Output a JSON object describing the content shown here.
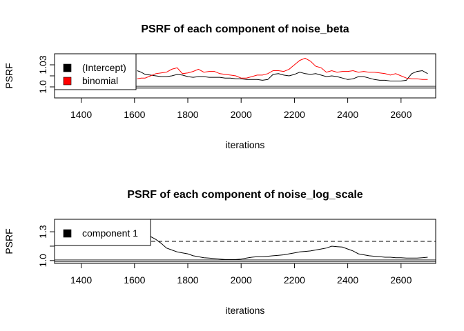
{
  "chart_data": [
    {
      "type": "line",
      "title": "PSRF of each component of noise_beta",
      "xlabel": "iterations",
      "ylabel": "PSRF",
      "xlim": [
        1300,
        2730
      ],
      "ylim": [
        0.985,
        1.045
      ],
      "x_ticks": [
        1400,
        1600,
        1800,
        2000,
        2200,
        2400,
        2600
      ],
      "y_ticks": [
        1.0,
        1.03
      ],
      "y_minor_ticks": [
        1.015
      ],
      "legend": "top-left",
      "hline": 1.0,
      "series": [
        {
          "name": "(Intercept)",
          "color": "#000000",
          "x": [
            1610,
            1625,
            1640,
            1660,
            1680,
            1700,
            1720,
            1740,
            1760,
            1780,
            1800,
            1820,
            1840,
            1860,
            1880,
            1900,
            1920,
            1940,
            1960,
            1980,
            2000,
            2020,
            2040,
            2060,
            2080,
            2100,
            2120,
            2140,
            2160,
            2180,
            2200,
            2220,
            2240,
            2260,
            2280,
            2300,
            2320,
            2340,
            2360,
            2380,
            2400,
            2420,
            2440,
            2460,
            2480,
            2500,
            2520,
            2540,
            2560,
            2580,
            2600,
            2620,
            2640,
            2660,
            2680,
            2700
          ],
          "y": [
            1.022,
            1.02,
            1.017,
            1.016,
            1.015,
            1.014,
            1.014,
            1.015,
            1.017,
            1.016,
            1.014,
            1.013,
            1.014,
            1.014,
            1.013,
            1.013,
            1.013,
            1.012,
            1.012,
            1.011,
            1.011,
            1.01,
            1.01,
            1.01,
            1.009,
            1.01,
            1.017,
            1.018,
            1.016,
            1.015,
            1.017,
            1.02,
            1.018,
            1.017,
            1.018,
            1.016,
            1.014,
            1.015,
            1.014,
            1.012,
            1.01,
            1.011,
            1.014,
            1.014,
            1.012,
            1.01,
            1.009,
            1.009,
            1.008,
            1.008,
            1.008,
            1.009,
            1.018,
            1.021,
            1.022,
            1.018
          ]
        },
        {
          "name": "binomial",
          "color": "#ff0000",
          "x": [
            1610,
            1625,
            1640,
            1660,
            1680,
            1700,
            1720,
            1740,
            1760,
            1780,
            1800,
            1820,
            1840,
            1860,
            1880,
            1900,
            1920,
            1940,
            1960,
            1980,
            2000,
            2020,
            2040,
            2060,
            2080,
            2100,
            2120,
            2140,
            2160,
            2180,
            2200,
            2220,
            2240,
            2260,
            2280,
            2300,
            2320,
            2340,
            2360,
            2380,
            2400,
            2420,
            2440,
            2460,
            2480,
            2500,
            2520,
            2540,
            2560,
            2580,
            2600,
            2620,
            2640,
            2660,
            2680,
            2700
          ],
          "y": [
            1.011,
            1.012,
            1.012,
            1.015,
            1.018,
            1.019,
            1.02,
            1.024,
            1.026,
            1.018,
            1.019,
            1.021,
            1.024,
            1.02,
            1.021,
            1.021,
            1.018,
            1.017,
            1.016,
            1.015,
            1.012,
            1.012,
            1.014,
            1.016,
            1.016,
            1.018,
            1.022,
            1.022,
            1.021,
            1.024,
            1.03,
            1.036,
            1.039,
            1.035,
            1.028,
            1.026,
            1.02,
            1.022,
            1.02,
            1.021,
            1.021,
            1.022,
            1.02,
            1.021,
            1.02,
            1.02,
            1.019,
            1.018,
            1.016,
            1.018,
            1.015,
            1.012,
            1.011,
            1.011,
            1.01,
            1.01
          ]
        }
      ]
    },
    {
      "type": "line",
      "title": "PSRF of each component of noise_log_scale",
      "xlabel": "iterations",
      "ylabel": "PSRF",
      "xlim": [
        1300,
        2730
      ],
      "ylim": [
        0.97,
        1.43
      ],
      "x_ticks": [
        1400,
        1600,
        1800,
        2000,
        2200,
        2400,
        2600
      ],
      "y_ticks": [
        1.0,
        1.3
      ],
      "y_minor_ticks": [
        1.15
      ],
      "legend": "top-left",
      "hline": 1.0,
      "threshold": 1.2,
      "series": [
        {
          "name": "component 1",
          "color": "#000000",
          "x": [
            1660,
            1680,
            1700,
            1720,
            1740,
            1760,
            1780,
            1800,
            1820,
            1840,
            1860,
            1880,
            1900,
            1920,
            1940,
            1960,
            1980,
            2000,
            2020,
            2040,
            2060,
            2080,
            2100,
            2120,
            2140,
            2160,
            2180,
            2200,
            2220,
            2240,
            2260,
            2280,
            2300,
            2320,
            2340,
            2360,
            2380,
            2400,
            2420,
            2440,
            2460,
            2480,
            2500,
            2520,
            2540,
            2560,
            2580,
            2600,
            2620,
            2640,
            2660,
            2680,
            2700
          ],
          "y": [
            1.25,
            1.22,
            1.18,
            1.13,
            1.11,
            1.09,
            1.08,
            1.07,
            1.05,
            1.04,
            1.03,
            1.025,
            1.02,
            1.015,
            1.01,
            1.01,
            1.01,
            1.015,
            1.025,
            1.035,
            1.04,
            1.04,
            1.045,
            1.05,
            1.055,
            1.06,
            1.07,
            1.08,
            1.09,
            1.095,
            1.1,
            1.11,
            1.12,
            1.13,
            1.15,
            1.145,
            1.14,
            1.12,
            1.1,
            1.07,
            1.06,
            1.05,
            1.045,
            1.04,
            1.035,
            1.035,
            1.03,
            1.03,
            1.025,
            1.025,
            1.025,
            1.03,
            1.035
          ]
        }
      ]
    }
  ]
}
